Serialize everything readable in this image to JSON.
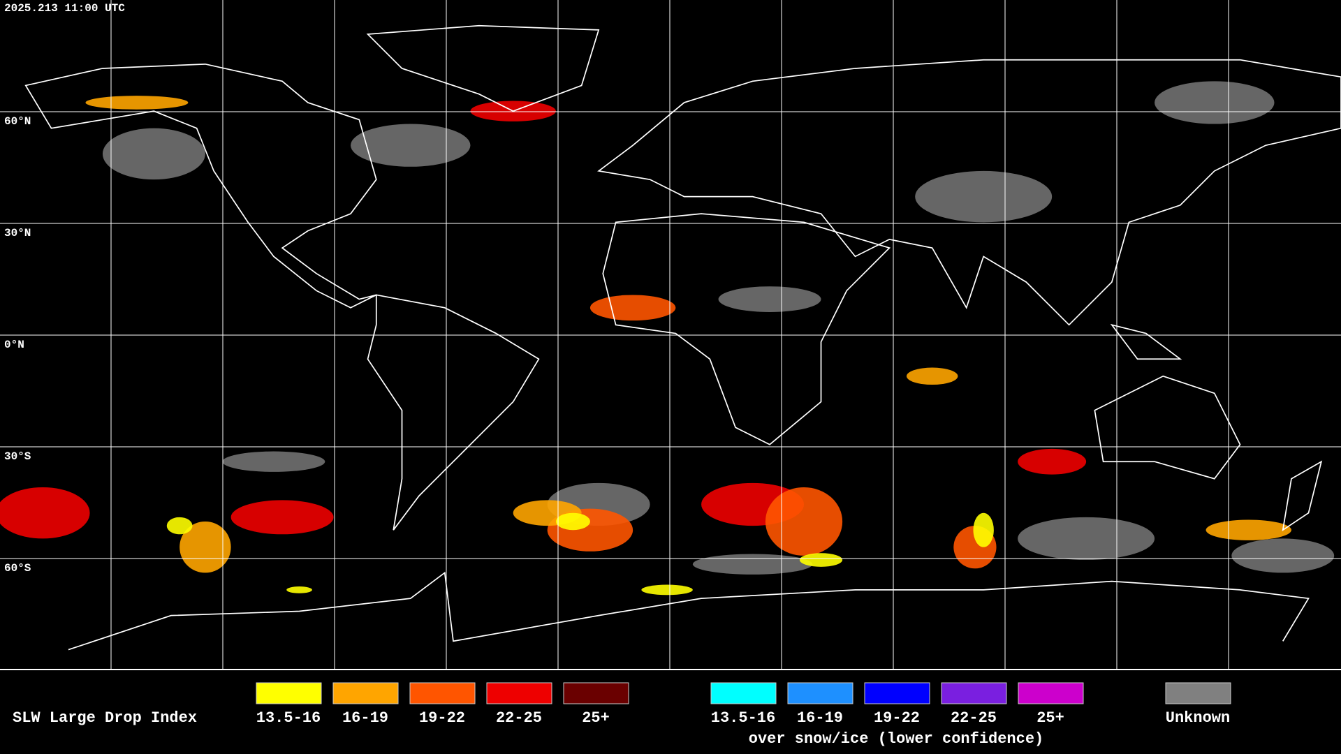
{
  "header": {
    "timestamp": "2025.213 11:00 UTC"
  },
  "map": {
    "lat_labels": [
      "60°N",
      "30°N",
      "0°N",
      "30°S",
      "60°S"
    ]
  },
  "legend": {
    "title": "SLW Large Drop Index",
    "groups": [
      {
        "items": [
          {
            "label": "13.5-16",
            "color": "#ffff00"
          },
          {
            "label": "16-19",
            "color": "#ffa500"
          },
          {
            "label": "19-22",
            "color": "#ff5500"
          },
          {
            "label": "22-25",
            "color": "#ee0000"
          },
          {
            "label": "25+",
            "color": "#6a0000"
          }
        ]
      },
      {
        "items": [
          {
            "label": "13.5-16",
            "color": "#00ffff"
          },
          {
            "label": "16-19",
            "color": "#1e90ff"
          },
          {
            "label": "19-22",
            "color": "#0000ff"
          },
          {
            "label": "22-25",
            "color": "#7a1fe0"
          },
          {
            "label": "25+",
            "color": "#cc00cc"
          }
        ],
        "caption": "over snow/ice (lower confidence)"
      }
    ],
    "unknown": {
      "label": "Unknown",
      "color": "#808080"
    }
  }
}
